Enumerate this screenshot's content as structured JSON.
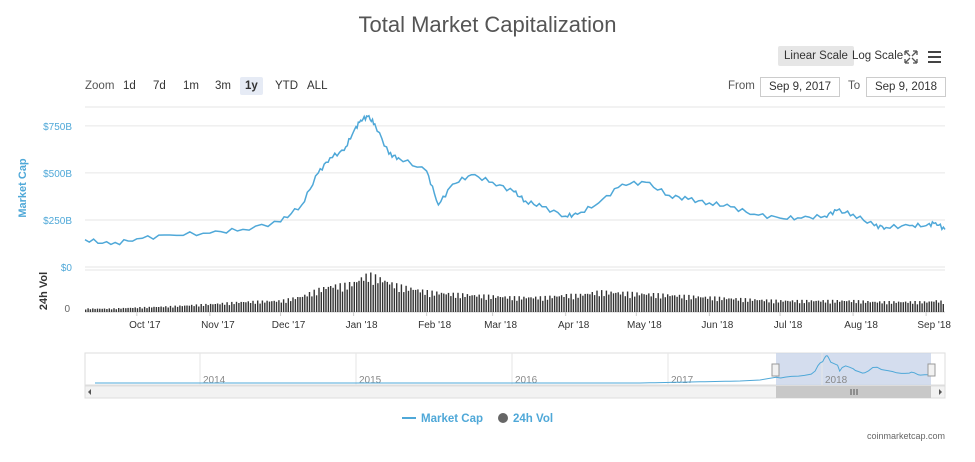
{
  "header": {
    "title": "Total Market Capitalization"
  },
  "scale": {
    "linear_label": "Linear Scale",
    "log_label": "Log Scale",
    "active": "linear"
  },
  "zoom": {
    "label": "Zoom",
    "options": [
      "1d",
      "7d",
      "1m",
      "3m",
      "1y",
      "YTD",
      "ALL"
    ],
    "active": "1y"
  },
  "range": {
    "from_label": "From",
    "from_value": "Sep 9, 2017",
    "to_label": "To",
    "to_value": "Sep 9, 2018"
  },
  "credit": "coinmarketcap.com",
  "colors": {
    "market_cap": "#4fa8d8",
    "volume": "#333333",
    "navigator_fill": "#c9d4ea"
  },
  "chart_data": {
    "type": "line",
    "x_range": [
      "Sep 9, 2017",
      "Sep 9, 2018"
    ],
    "x_tick_labels": [
      "Oct '17",
      "Nov '17",
      "Dec '17",
      "Jan '18",
      "Feb '18",
      "Mar '18",
      "Apr '18",
      "May '18",
      "Jun '18",
      "Jul '18",
      "Aug '18",
      "Sep '18"
    ],
    "y_axis": {
      "label": "Market Cap",
      "tick_labels": [
        "$0",
        "$250B",
        "$500B",
        "$750B"
      ],
      "range": [
        0,
        850
      ]
    },
    "volume_axis": {
      "label": "24h Vol",
      "tick_labels": [
        "0"
      ]
    },
    "series": [
      {
        "name": "Market Cap",
        "unit": "billion USD",
        "x": [
          "2017-09-09",
          "2017-09-20",
          "2017-10-01",
          "2017-10-15",
          "2017-11-01",
          "2017-11-15",
          "2017-12-01",
          "2017-12-10",
          "2017-12-17",
          "2017-12-22",
          "2017-12-28",
          "2018-01-01",
          "2018-01-04",
          "2018-01-07",
          "2018-01-10",
          "2018-01-16",
          "2018-01-20",
          "2018-02-01",
          "2018-02-06",
          "2018-02-12",
          "2018-02-20",
          "2018-03-01",
          "2018-03-10",
          "2018-03-15",
          "2018-03-22",
          "2018-04-01",
          "2018-04-06",
          "2018-04-15",
          "2018-04-25",
          "2018-05-05",
          "2018-05-15",
          "2018-05-23",
          "2018-06-01",
          "2018-06-10",
          "2018-06-20",
          "2018-07-01",
          "2018-07-10",
          "2018-07-20",
          "2018-07-25",
          "2018-08-01",
          "2018-08-10",
          "2018-08-15",
          "2018-08-25",
          "2018-09-01",
          "2018-09-05",
          "2018-09-09"
        ],
        "values": [
          145,
          120,
          150,
          170,
          180,
          200,
          240,
          330,
          500,
          580,
          620,
          720,
          780,
          800,
          760,
          600,
          580,
          510,
          330,
          440,
          490,
          450,
          400,
          350,
          320,
          270,
          280,
          340,
          440,
          450,
          380,
          360,
          340,
          320,
          280,
          260,
          260,
          270,
          300,
          280,
          220,
          210,
          220,
          220,
          235,
          200
        ]
      },
      {
        "name": "24h Vol",
        "unit": "relative",
        "values": [
          3,
          3,
          4,
          5,
          7,
          9,
          10,
          14,
          20,
          23,
          24,
          26,
          30,
          33,
          31,
          26,
          23,
          18,
          17,
          16,
          15,
          14,
          13,
          13,
          13,
          15,
          15,
          18,
          17,
          16,
          15,
          14,
          13,
          12,
          11,
          10,
          10,
          10,
          10,
          10,
          9,
          9,
          9,
          9,
          10,
          9
        ]
      }
    ],
    "navigator": {
      "x_tick_labels": [
        "2014",
        "2015",
        "2016",
        "2017",
        "2018"
      ],
      "selected_range": [
        "Sep 9, 2017",
        "Sep 9, 2018"
      ]
    },
    "legend": [
      "Market Cap",
      "24h Vol"
    ],
    "legend_position": "bottom-center",
    "grid": true
  }
}
